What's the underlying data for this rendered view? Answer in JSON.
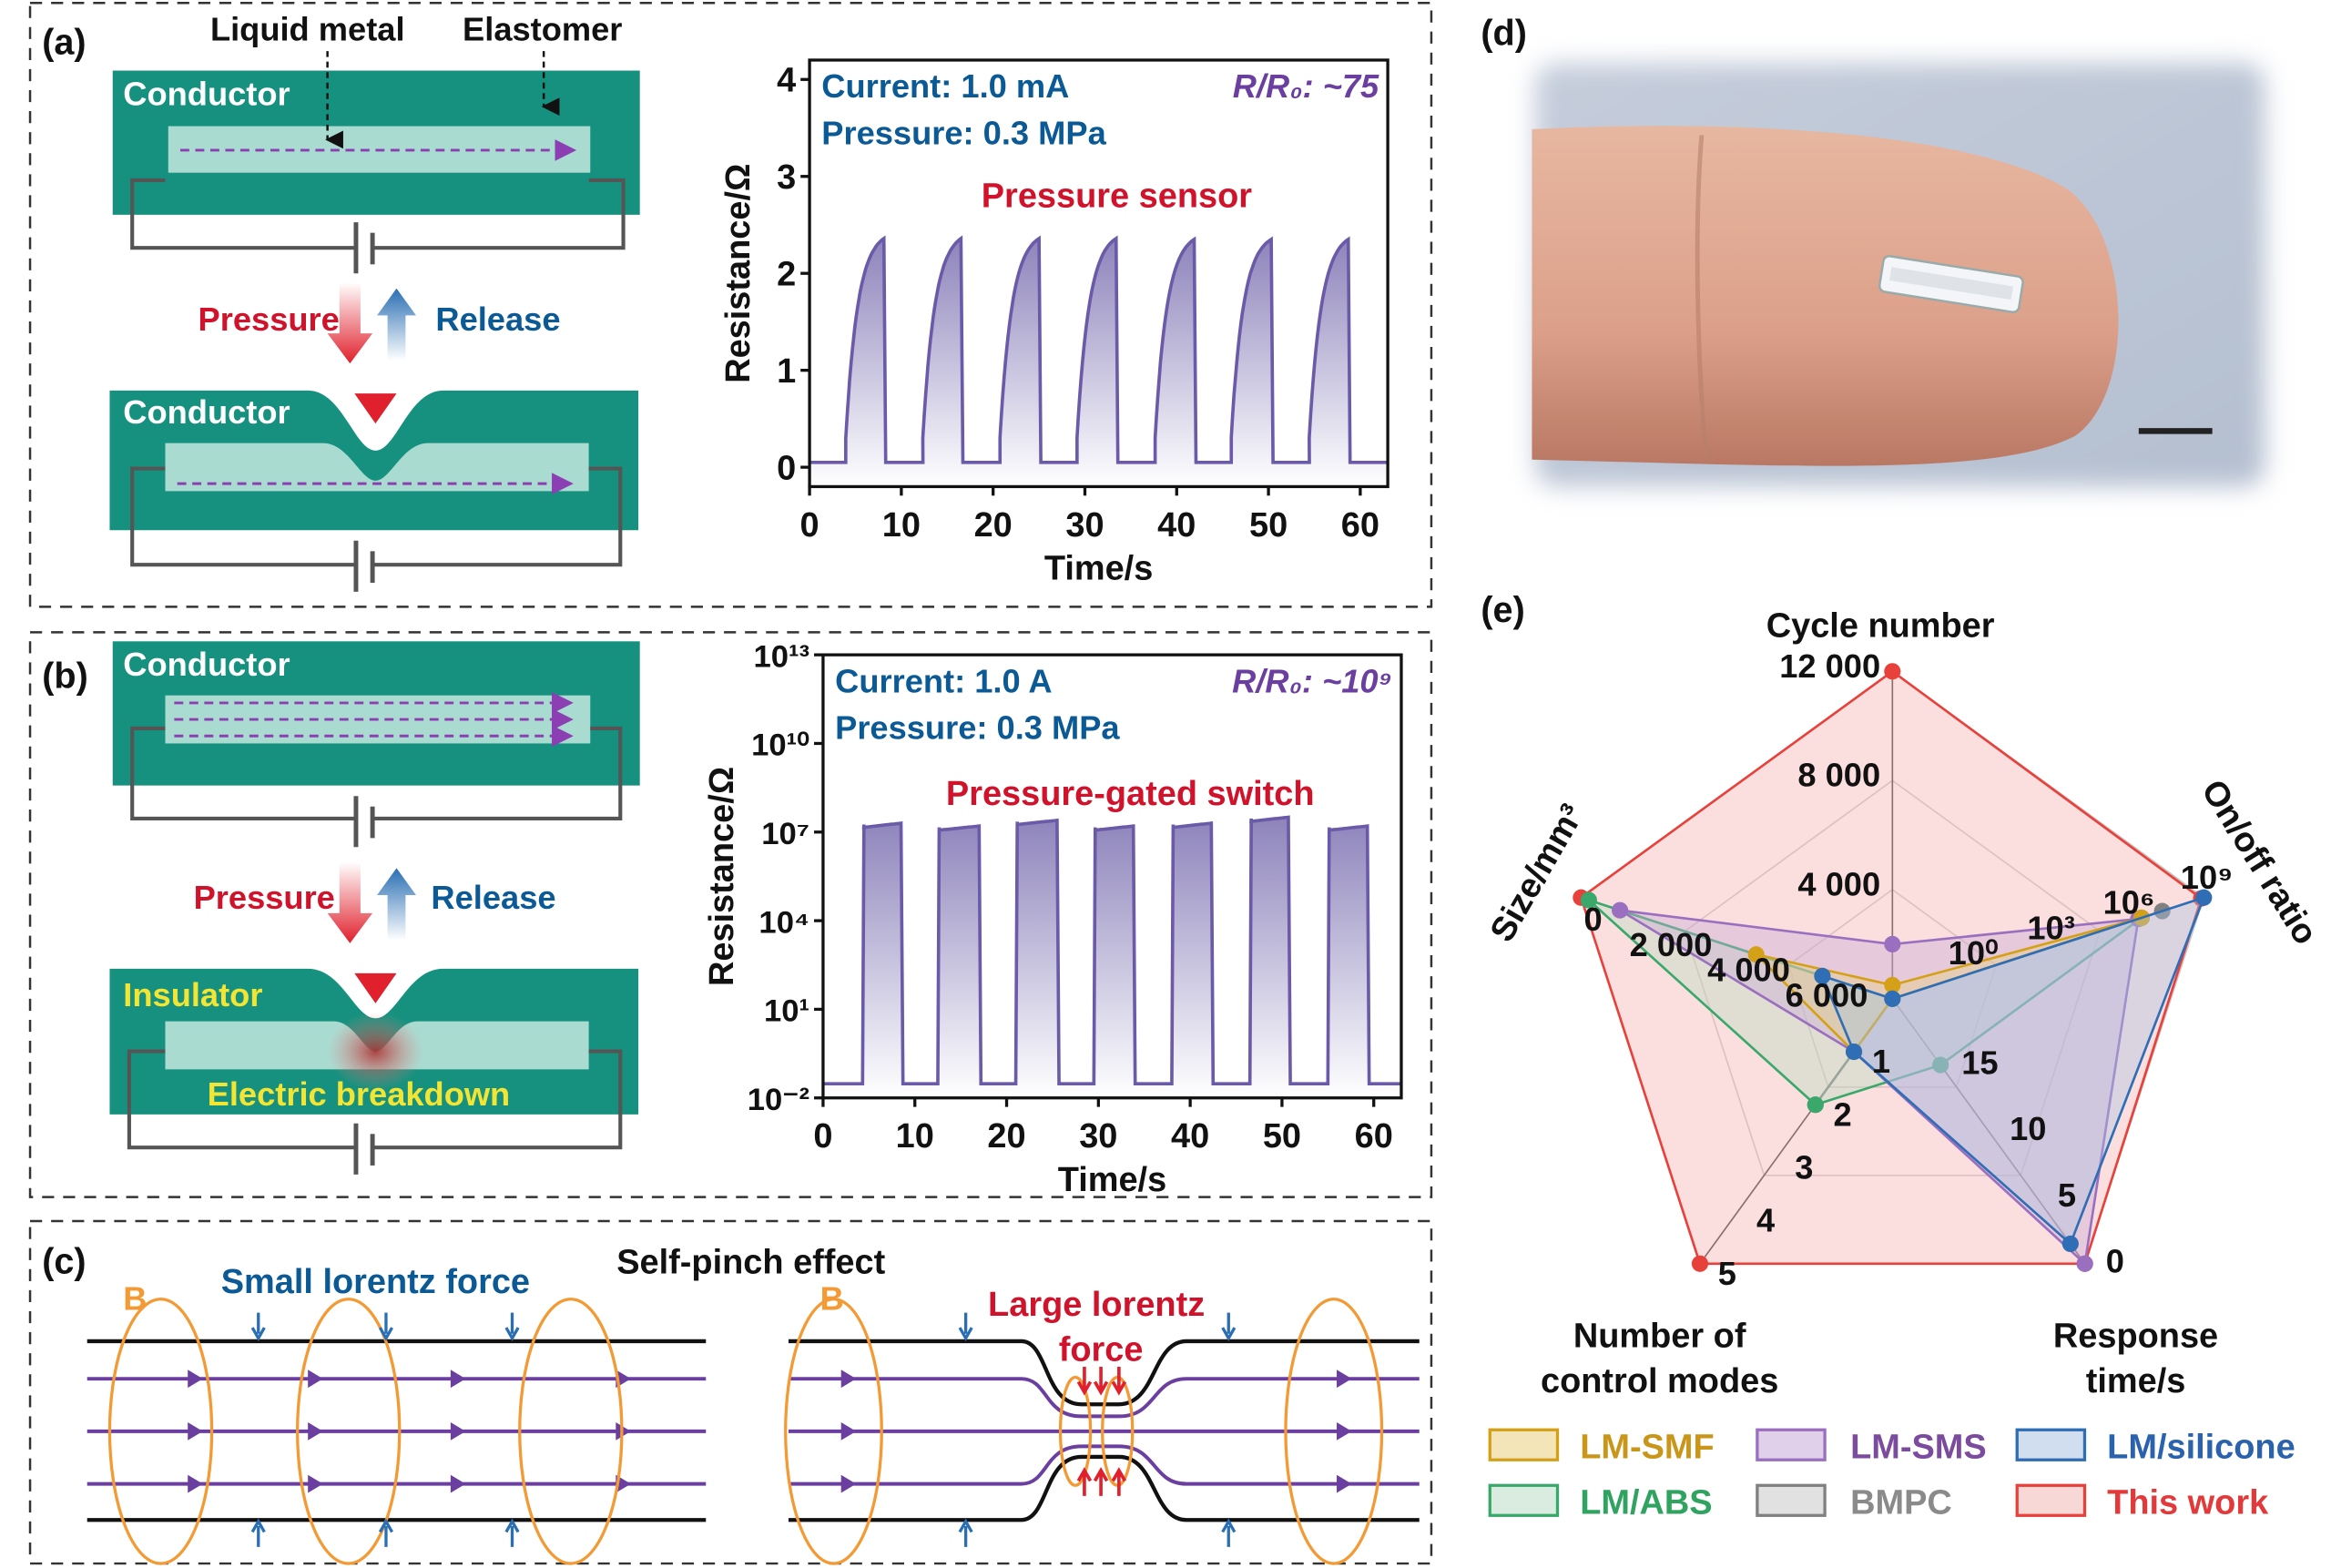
{
  "panel_labels": {
    "a": "(a)",
    "b": "(b)",
    "c": "(c)",
    "d": "(d)",
    "e": "(e)"
  },
  "panel_a": {
    "liquid_metal": "Liquid metal",
    "elastomer": "Elastomer",
    "conductor_top": "Conductor",
    "conductor_bottom": "Conductor",
    "pressure": "Pressure",
    "release": "Release"
  },
  "panel_b": {
    "conductor": "Conductor",
    "insulator": "Insulator",
    "breakdown": "Electric breakdown",
    "pressure": "Pressure",
    "release": "Release"
  },
  "panel_c": {
    "title": "Self-pinch effect",
    "small_force": "Small lorentz force",
    "large_force_1": "Large lorentz",
    "large_force_2": "force",
    "b_left": "B",
    "b_right": "B"
  },
  "colors": {
    "teal": "#17917f",
    "light_teal": "#a9dbd1",
    "curve": "#6a5aa8",
    "red": "#d0122b",
    "blue": "#0b5a96",
    "purple": "#6b3fa0",
    "orange": "#f39a35"
  },
  "chart_data": [
    {
      "type": "line",
      "title": "Pressure sensor",
      "annotations": [
        "Current: 1.0 mA",
        "Pressure: 0.3 MPa",
        "R/R₀: ~75"
      ],
      "xlabel": "Time/s",
      "ylabel": "Resistance/Ω",
      "xlim": [
        0,
        63
      ],
      "ylim": [
        -0.2,
        4.2
      ],
      "xticks": [
        "0",
        "10",
        "20",
        "30",
        "40",
        "50",
        "60"
      ],
      "yticks": [
        "0",
        "1",
        "2",
        "3",
        "4"
      ],
      "baseline": 0.05,
      "pulses": [
        {
          "rise": 3.8,
          "fall": 8.1,
          "peak": 2.36
        },
        {
          "rise": 12.2,
          "fall": 16.5,
          "peak": 2.36
        },
        {
          "rise": 20.6,
          "fall": 25.0,
          "peak": 2.36
        },
        {
          "rise": 29.0,
          "fall": 33.4,
          "peak": 2.36
        },
        {
          "rise": 37.5,
          "fall": 41.9,
          "peak": 2.35
        },
        {
          "rise": 45.8,
          "fall": 50.3,
          "peak": 2.35
        },
        {
          "rise": 54.3,
          "fall": 58.7,
          "peak": 2.35
        }
      ]
    },
    {
      "type": "line",
      "title": "Pressure-gated switch",
      "annotations": [
        "Current: 1.0 A",
        "Pressure: 0.3 MPa",
        "R/R₀: ~10⁹"
      ],
      "xlabel": "Time/s",
      "ylabel": "Resistance/Ω",
      "yscale": "log",
      "xlim": [
        0,
        63
      ],
      "ylim": [
        0.01,
        10000000000000.0
      ],
      "xticks": [
        "0",
        "10",
        "20",
        "30",
        "40",
        "50",
        "60"
      ],
      "yticks": [
        "10⁻²",
        "10¹",
        "10⁴",
        "10⁷",
        "10¹⁰",
        "10¹³"
      ],
      "baseline": 0.03,
      "pulses": [
        {
          "rise": 4.3,
          "fall": 8.5,
          "peak": 20000000.0
        },
        {
          "rise": 12.5,
          "fall": 17.0,
          "peak": 16000000.0
        },
        {
          "rise": 21.0,
          "fall": 25.5,
          "peak": 25000000.0
        },
        {
          "rise": 29.5,
          "fall": 33.8,
          "peak": 16000000.0
        },
        {
          "rise": 38.0,
          "fall": 42.3,
          "peak": 20000000.0
        },
        {
          "rise": 46.5,
          "fall": 50.7,
          "peak": 32000000.0
        },
        {
          "rise": 55.0,
          "fall": 59.3,
          "peak": 16000000.0
        }
      ]
    },
    {
      "type": "radar",
      "axes": [
        {
          "name": "Cycle number",
          "scale": "linear",
          "center": 0,
          "outer": 12000,
          "ticks": [
            {
              "v": 4000,
              "t": "4 000"
            },
            {
              "v": 8000,
              "t": "8 000"
            },
            {
              "v": 12000,
              "t": "12 000"
            }
          ]
        },
        {
          "name": "On/off ratio",
          "scale": "log",
          "center": 0.001,
          "outer": 1000000000.0,
          "ticks": [
            {
              "v": 1,
              "t": "10⁰"
            },
            {
              "v": 1000,
              "t": "10³"
            },
            {
              "v": 1000000.0,
              "t": "10⁶"
            },
            {
              "v": 1000000000.0,
              "t": "10⁹"
            }
          ]
        },
        {
          "name_lines": [
            "Response",
            "time/s"
          ],
          "scale": "linear",
          "center": 20,
          "outer": 0,
          "ticks": [
            {
              "v": 15,
              "t": "15"
            },
            {
              "v": 10,
              "t": "10"
            },
            {
              "v": 5,
              "t": "5"
            },
            {
              "v": 0,
              "t": "0"
            }
          ]
        },
        {
          "name_lines": [
            "Number of",
            "control modes"
          ],
          "scale": "linear",
          "center": 0,
          "outer": 5,
          "ticks": [
            {
              "v": 1,
              "t": "1"
            },
            {
              "v": 2,
              "t": "2"
            },
            {
              "v": 3,
              "t": "3"
            },
            {
              "v": 4,
              "t": "4"
            },
            {
              "v": 5,
              "t": "5"
            }
          ]
        },
        {
          "name": "Size/mm³",
          "scale": "linear",
          "center": 8000,
          "outer": 0,
          "ticks": [
            {
              "v": 6000,
              "t": "6 000"
            },
            {
              "v": 4000,
              "t": "4 000"
            },
            {
              "v": 2000,
              "t": "2 000"
            },
            {
              "v": 0,
              "t": "0"
            }
          ]
        }
      ],
      "series": [
        {
          "name": "This work",
          "color": "#e8413c",
          "fill": "#f3b8b5",
          "text": "#e23a3a",
          "values": [
            12000,
            800000000.0,
            0,
            5,
            0
          ]
        },
        {
          "name": "BMPC",
          "color": "#808080",
          "fill": "#c9c9c9",
          "text": "#8a8a8a",
          "values": [
            0,
            25000000.0,
            20,
            2,
            8000
          ]
        },
        {
          "name": "LM/ABS",
          "color": "#3aa86b",
          "fill": "#b9dcc4",
          "text": "#2fa35f",
          "values": [
            0,
            4000000.0,
            15,
            2,
            200
          ]
        },
        {
          "name": "LM-SMS",
          "color": "#9b6fc0",
          "fill": "#c9a9d8",
          "text": "#7b4b9e",
          "values": [
            2000,
            3000000.0,
            0,
            1,
            1000
          ]
        },
        {
          "name": "LM-SMF",
          "color": "#d4a017",
          "fill": "#e9cf7d",
          "text": "#c9961a",
          "values": [
            500,
            4000000.0,
            20,
            1,
            4500
          ]
        },
        {
          "name": "LM/silicone",
          "color": "#2f6db5",
          "fill": "#a9c3e3",
          "text": "#2a62ad",
          "values": [
            0,
            1000000000.0,
            1.5,
            1,
            6200
          ]
        }
      ],
      "legend_order": [
        "LM-SMF",
        "LM-SMS",
        "LM/silicone",
        "LM/ABS",
        "BMPC",
        "This work"
      ],
      "legend": "bottom",
      "grid": true
    }
  ]
}
